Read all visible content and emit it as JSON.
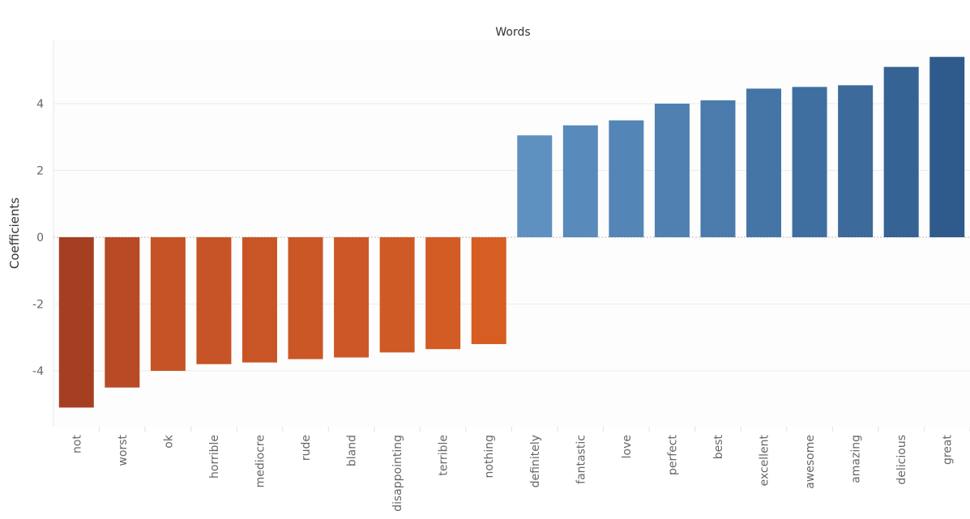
{
  "chart_data": {
    "type": "bar",
    "title": "Words",
    "xlabel": "",
    "ylabel": "Coefficients",
    "ylim": [
      -5.6,
      5.6
    ],
    "yticks": [
      -4,
      -2,
      0,
      2,
      4
    ],
    "grid": true,
    "categories": [
      "not",
      "worst",
      "ok",
      "horrible",
      "mediocre",
      "rude",
      "bland",
      "disappointing",
      "terrible",
      "nothing",
      "definitely",
      "fantastic",
      "love",
      "perfect",
      "best",
      "excellent",
      "awesome",
      "amazing",
      "delicious",
      "great"
    ],
    "values": [
      -5.1,
      -4.5,
      -4.0,
      -3.8,
      -3.75,
      -3.65,
      -3.6,
      -3.45,
      -3.35,
      -3.2,
      3.05,
      3.35,
      3.5,
      4.0,
      4.1,
      4.45,
      4.5,
      4.55,
      5.1,
      5.4
    ],
    "colors": [
      "#a63f22",
      "#b84a25",
      "#c55325",
      "#c65426",
      "#c95526",
      "#cb5626",
      "#cd5726",
      "#d05a25",
      "#d35c24",
      "#d65e23",
      "#5e90c0",
      "#588abb",
      "#5385b6",
      "#4f80b1",
      "#4a7bac",
      "#4575a6",
      "#3f6fa0",
      "#3b6a9b",
      "#346394",
      "#2e5b8b"
    ]
  }
}
